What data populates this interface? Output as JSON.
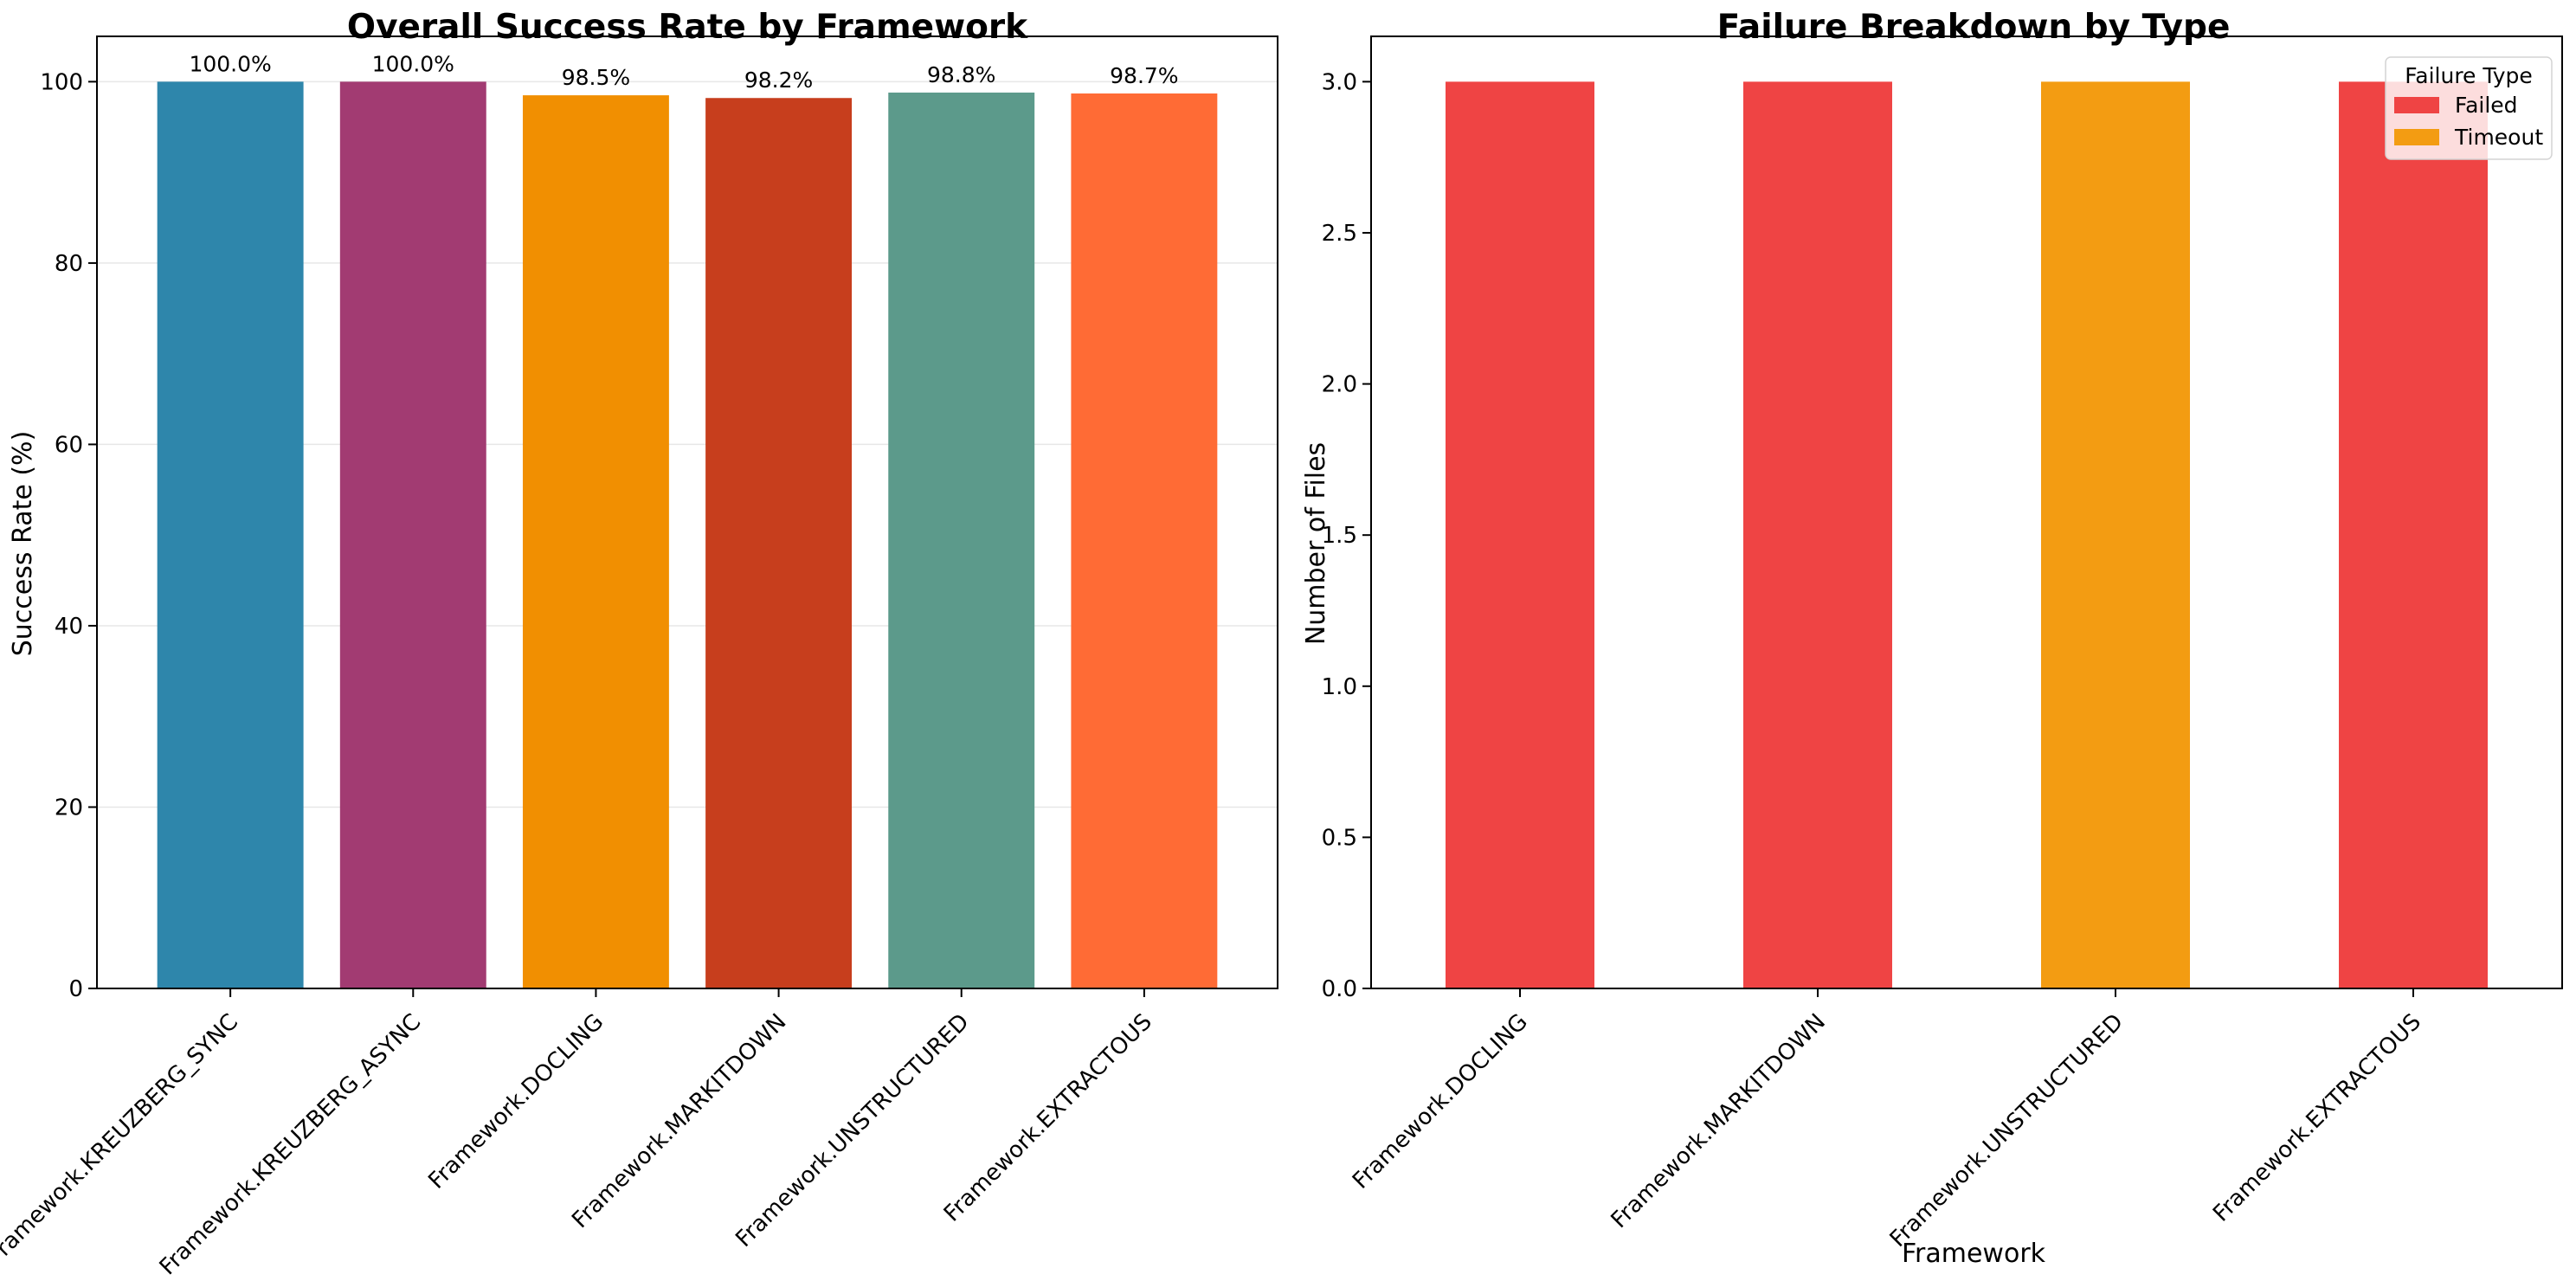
{
  "chart_data": [
    {
      "type": "bar",
      "title": "Overall Success Rate by Framework",
      "xlabel": "",
      "ylabel": "Success Rate (%)",
      "ylim": [
        0,
        105
      ],
      "yticks": [
        0,
        20,
        40,
        60,
        80,
        100
      ],
      "grid": "horizontal",
      "categories": [
        "Framework.KREUZBERG_SYNC",
        "Framework.KREUZBERG_ASYNC",
        "Framework.DOCLING",
        "Framework.MARKITDOWN",
        "Framework.UNSTRUCTURED",
        "Framework.EXTRACTOUS"
      ],
      "values": [
        100.0,
        100.0,
        98.5,
        98.2,
        98.8,
        98.7
      ],
      "value_labels": [
        "100.0%",
        "100.0%",
        "98.5%",
        "98.2%",
        "98.8%",
        "98.7%"
      ],
      "colors": [
        "#2E86AB",
        "#A23B72",
        "#F18F01",
        "#C73E1D",
        "#5C9A8B",
        "#FF6B35"
      ]
    },
    {
      "type": "bar",
      "stacked": true,
      "title": "Failure Breakdown by Type",
      "xlabel": "Framework",
      "ylabel": "Number of Files",
      "ylim": [
        0,
        3.15
      ],
      "yticks": [
        "0.0",
        "0.5",
        "1.0",
        "1.5",
        "2.0",
        "2.5",
        "3.0"
      ],
      "categories": [
        "Framework.DOCLING",
        "Framework.MARKITDOWN",
        "Framework.UNSTRUCTURED",
        "Framework.EXTRACTOUS"
      ],
      "series": [
        {
          "name": "Failed",
          "values": [
            3,
            3,
            0,
            3
          ],
          "color": "#EF4444"
        },
        {
          "name": "Timeout",
          "values": [
            0,
            0,
            3,
            0
          ],
          "color": "#F39C12"
        }
      ],
      "legend": {
        "title": "Failure Type",
        "placement": "upper right"
      }
    }
  ]
}
